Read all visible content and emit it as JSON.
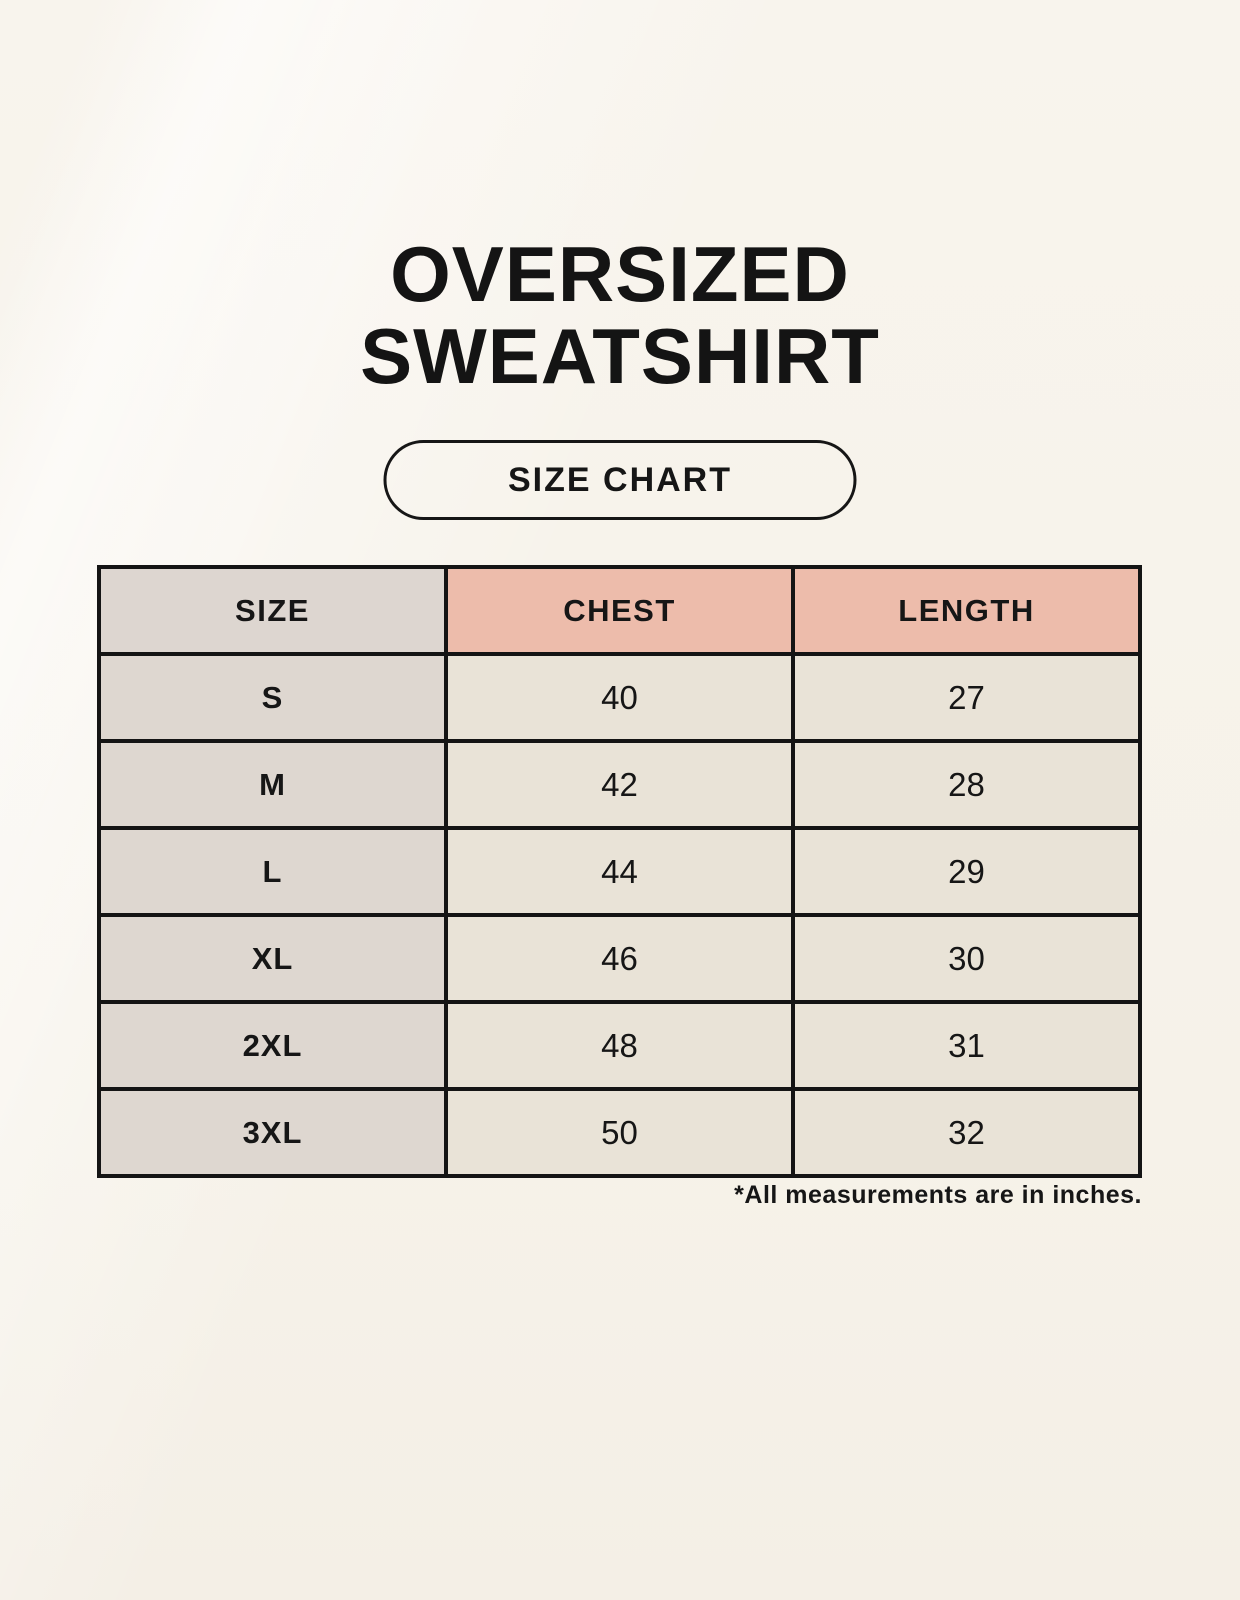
{
  "page": {
    "title_line1": "OVERSIZED",
    "title_line2": "SWEATSHIRT",
    "badge_label": "SIZE CHART",
    "footnote": "*All measurements are in inches."
  },
  "chart_data": {
    "type": "table",
    "title": "OVERSIZED SWEATSHIRT",
    "subtitle": "SIZE CHART",
    "columns": [
      "SIZE",
      "CHEST",
      "LENGTH"
    ],
    "rows": [
      [
        "S",
        "40",
        "27"
      ],
      [
        "M",
        "42",
        "28"
      ],
      [
        "L",
        "44",
        "29"
      ],
      [
        "XL",
        "46",
        "30"
      ],
      [
        "2XL",
        "48",
        "31"
      ],
      [
        "3XL",
        "50",
        "32"
      ]
    ],
    "units": "inches",
    "footnote": "*All measurements are in inches."
  },
  "colors": {
    "background": "#f6f2e9",
    "header_size_bg": "#ddd6d0",
    "header_measure_bg": "#edbcab",
    "size_column_bg": "#ded7d0",
    "value_cell_bg": "#e9e3d7",
    "border": "#141414",
    "text": "#161616"
  }
}
